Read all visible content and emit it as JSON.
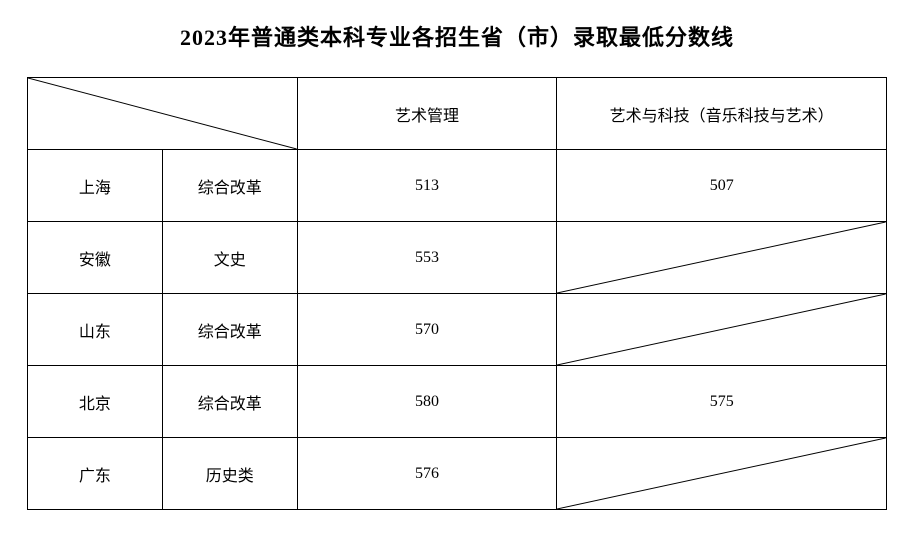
{
  "title": "2023年普通类本科专业各招生省（市）录取最低分数线",
  "table": {
    "type": "table",
    "border_color": "#000000",
    "background_color": "#ffffff",
    "text_color": "#000000",
    "font_family": "SimSun",
    "title_fontsize": 22,
    "cell_fontsize": 16,
    "columns": {
      "major1": "艺术管理",
      "major2": "艺术与科技（音乐科技与艺术）"
    },
    "rows": [
      {
        "province": "上海",
        "category": "综合改革",
        "major1": "513",
        "major2": "507",
        "major2_na": false
      },
      {
        "province": "安徽",
        "category": "文史",
        "major1": "553",
        "major2": "",
        "major2_na": true
      },
      {
        "province": "山东",
        "category": "综合改革",
        "major1": "570",
        "major2": "",
        "major2_na": true
      },
      {
        "province": "北京",
        "category": "综合改革",
        "major1": "580",
        "major2": "575",
        "major2_na": false
      },
      {
        "province": "广东",
        "category": "历史类",
        "major1": "576",
        "major2": "",
        "major2_na": true
      }
    ]
  }
}
